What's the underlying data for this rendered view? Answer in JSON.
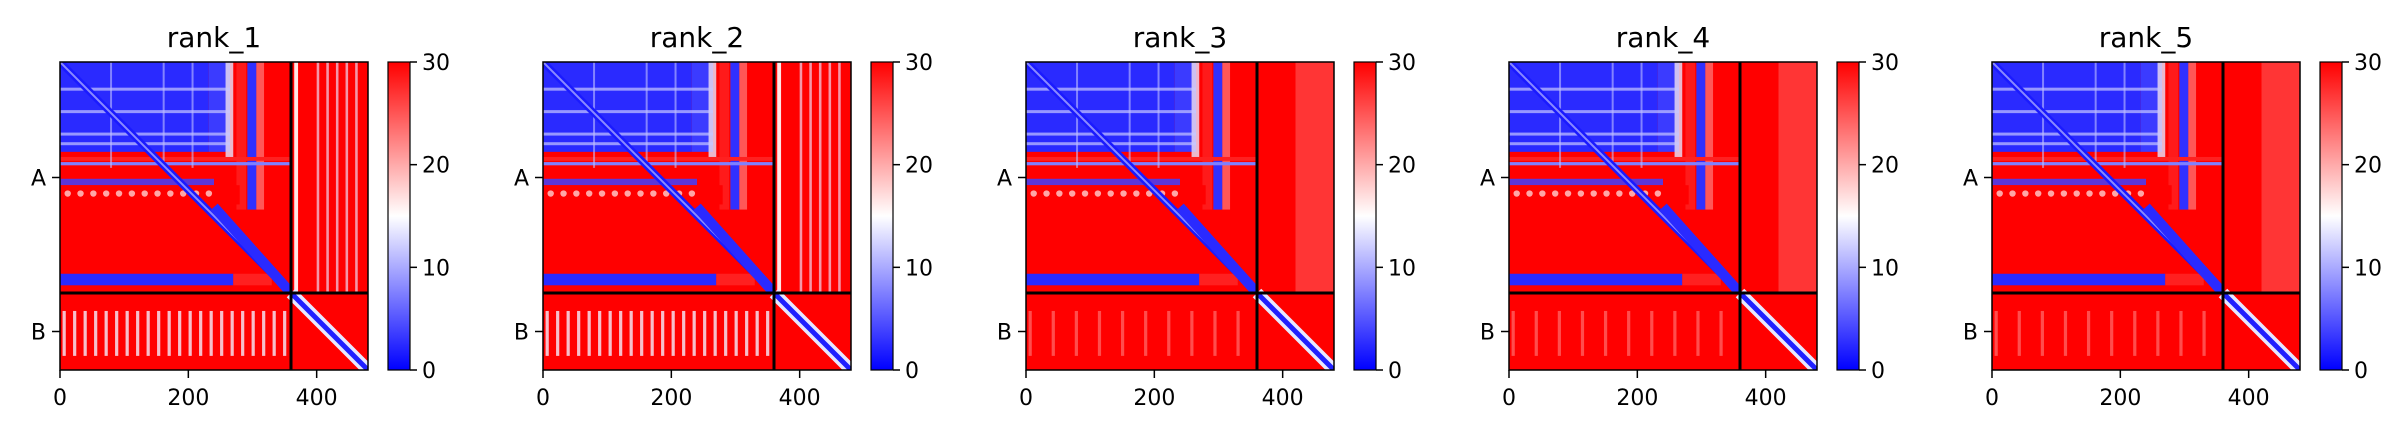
{
  "chart_data": [
    {
      "type": "heatmap",
      "title": "rank_1",
      "x_ticks": [
        0,
        200,
        400
      ],
      "y_tick_labels": [
        "A",
        "B"
      ],
      "chain_lengths": {
        "A": 360,
        "B": 120
      },
      "xlim": [
        0,
        480
      ],
      "colorbar": {
        "min": 0,
        "max": 30,
        "ticks": [
          0,
          10,
          20,
          30
        ],
        "cmap": [
          "#0000ff",
          "#ffffff",
          "#ff0000"
        ]
      },
      "chain_b_pattern": "mixed",
      "blue_cross_band": [
        275,
        290
      ]
    },
    {
      "type": "heatmap",
      "title": "rank_2",
      "x_ticks": [
        0,
        200,
        400
      ],
      "y_tick_labels": [
        "A",
        "B"
      ],
      "chain_lengths": {
        "A": 360,
        "B": 120
      },
      "xlim": [
        0,
        480
      ],
      "colorbar": {
        "min": 0,
        "max": 30,
        "ticks": [
          0,
          10,
          20,
          30
        ],
        "cmap": [
          "#0000ff",
          "#ffffff",
          "#ff0000"
        ]
      },
      "chain_b_pattern": "mixed",
      "blue_cross_band": [
        275,
        290
      ]
    },
    {
      "type": "heatmap",
      "title": "rank_3",
      "x_ticks": [
        0,
        200,
        400
      ],
      "y_tick_labels": [
        "A",
        "B"
      ],
      "chain_lengths": {
        "A": 360,
        "B": 120
      },
      "xlim": [
        0,
        480
      ],
      "colorbar": {
        "min": 0,
        "max": 30,
        "ticks": [
          0,
          10,
          20,
          30
        ],
        "cmap": [
          "#0000ff",
          "#ffffff",
          "#ff0000"
        ]
      },
      "chain_b_pattern": "red",
      "blue_cross_band": [
        275,
        290
      ]
    },
    {
      "type": "heatmap",
      "title": "rank_4",
      "x_ticks": [
        0,
        200,
        400
      ],
      "y_tick_labels": [
        "A",
        "B"
      ],
      "chain_lengths": {
        "A": 360,
        "B": 120
      },
      "xlim": [
        0,
        480
      ],
      "colorbar": {
        "min": 0,
        "max": 30,
        "ticks": [
          0,
          10,
          20,
          30
        ],
        "cmap": [
          "#0000ff",
          "#ffffff",
          "#ff0000"
        ]
      },
      "chain_b_pattern": "red",
      "blue_cross_band": [
        275,
        290
      ]
    },
    {
      "type": "heatmap",
      "title": "rank_5",
      "x_ticks": [
        0,
        200,
        400
      ],
      "y_tick_labels": [
        "A",
        "B"
      ],
      "chain_lengths": {
        "A": 360,
        "B": 120
      },
      "xlim": [
        0,
        480
      ],
      "colorbar": {
        "min": 0,
        "max": 30,
        "ticks": [
          0,
          10,
          20,
          30
        ],
        "cmap": [
          "#0000ff",
          "#ffffff",
          "#ff0000"
        ]
      },
      "chain_b_pattern": "red",
      "blue_cross_band": [
        275,
        290
      ]
    }
  ]
}
